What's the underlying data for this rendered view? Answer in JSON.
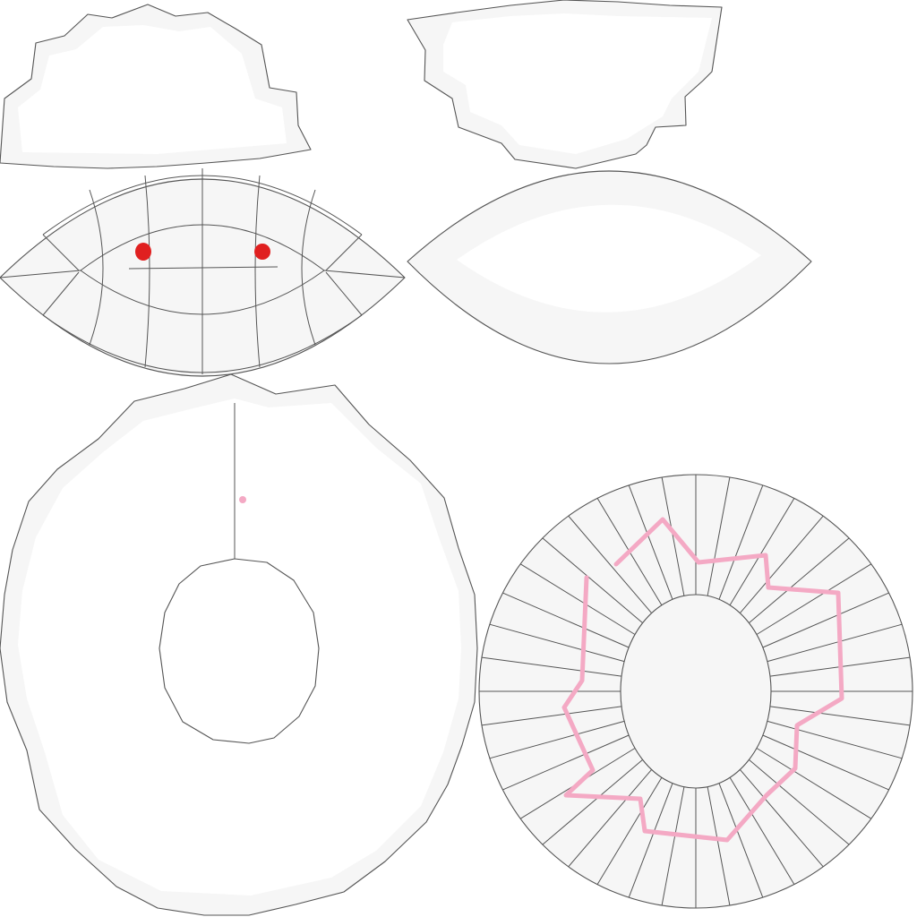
{
  "texture": {
    "background": "#ffffff",
    "face_fill": "#f6f6f6",
    "edge_color": "#555555"
  },
  "islands": [
    {
      "name": "hat-top-left",
      "grid": "none"
    },
    {
      "name": "hat-top-right",
      "grid": "none"
    },
    {
      "name": "lens-left",
      "grid": "quad-grid",
      "marks": [
        "red-dot-left",
        "red-dot-right"
      ]
    },
    {
      "name": "lens-right",
      "grid": "hidden"
    },
    {
      "name": "ring-left",
      "grid": "none"
    },
    {
      "name": "ring-right",
      "grid": "radial-quads",
      "marks": [
        "pink-star-stroke"
      ]
    }
  ],
  "paint": {
    "eye_color": "#e02020",
    "stroke_color": "#f4a9c4"
  }
}
